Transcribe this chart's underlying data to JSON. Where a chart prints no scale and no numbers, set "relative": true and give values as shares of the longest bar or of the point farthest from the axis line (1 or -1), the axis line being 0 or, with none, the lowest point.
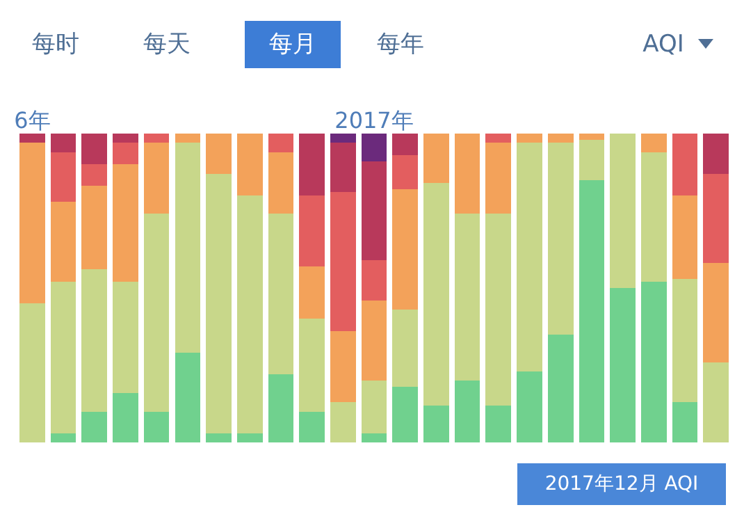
{
  "chart_data": {
    "type": "bar",
    "stacked": true,
    "relative": true,
    "categories": [
      "6年",
      null,
      null,
      null,
      null,
      null,
      null,
      null,
      null,
      null,
      null,
      "2017年",
      null,
      null,
      null,
      null,
      null,
      null,
      null,
      null,
      null,
      null,
      null
    ],
    "series": [
      {
        "color": "#70d18e",
        "values": [
          0,
          0.03,
          0.1,
          0.16,
          0.1,
          0.29,
          0.03,
          0.03,
          0.22,
          0.1,
          0,
          0.03,
          0.18,
          0.12,
          0.2,
          0.12,
          0.23,
          0.35,
          0.85,
          0.5,
          0.52,
          0.13,
          0
        ]
      },
      {
        "color": "#c8d78a",
        "values": [
          0.45,
          0.49,
          0.46,
          0.36,
          0.64,
          0.68,
          0.84,
          0.77,
          0.52,
          0.3,
          0.13,
          0.17,
          0.25,
          0.72,
          0.54,
          0.62,
          0.74,
          0.62,
          0.13,
          0.5,
          0.42,
          0.4,
          0.26
        ]
      },
      {
        "color": "#f3a25a",
        "values": [
          0.52,
          0.26,
          0.27,
          0.38,
          0.23,
          0.03,
          0.13,
          0.2,
          0.2,
          0.17,
          0.23,
          0.26,
          0.39,
          0.16,
          0.26,
          0.23,
          0.03,
          0.03,
          0.02,
          0,
          0.06,
          0.27,
          0.32
        ]
      },
      {
        "color": "#e35e5f",
        "values": [
          0,
          0.16,
          0.07,
          0.07,
          0.03,
          0,
          0,
          0,
          0.06,
          0.23,
          0.45,
          0.13,
          0.11,
          0,
          0,
          0.03,
          0,
          0,
          0,
          0,
          0,
          0.2,
          0.29
        ]
      },
      {
        "color": "#b8395b",
        "values": [
          0.03,
          0.06,
          0.1,
          0.03,
          0,
          0,
          0,
          0,
          0,
          0.2,
          0.16,
          0.32,
          0.07,
          0,
          0,
          0,
          0,
          0,
          0,
          0,
          0,
          0,
          0.13
        ]
      },
      {
        "color": "#6b2a7c",
        "values": [
          0,
          0,
          0,
          0,
          0,
          0,
          0,
          0,
          0,
          0,
          0.03,
          0.09,
          0,
          0,
          0,
          0,
          0,
          0,
          0,
          0,
          0,
          0,
          0
        ]
      }
    ],
    "annotations": [
      "每时",
      "每天",
      "每月",
      "每年",
      "AQI",
      "2017年12月 AQI"
    ]
  }
}
